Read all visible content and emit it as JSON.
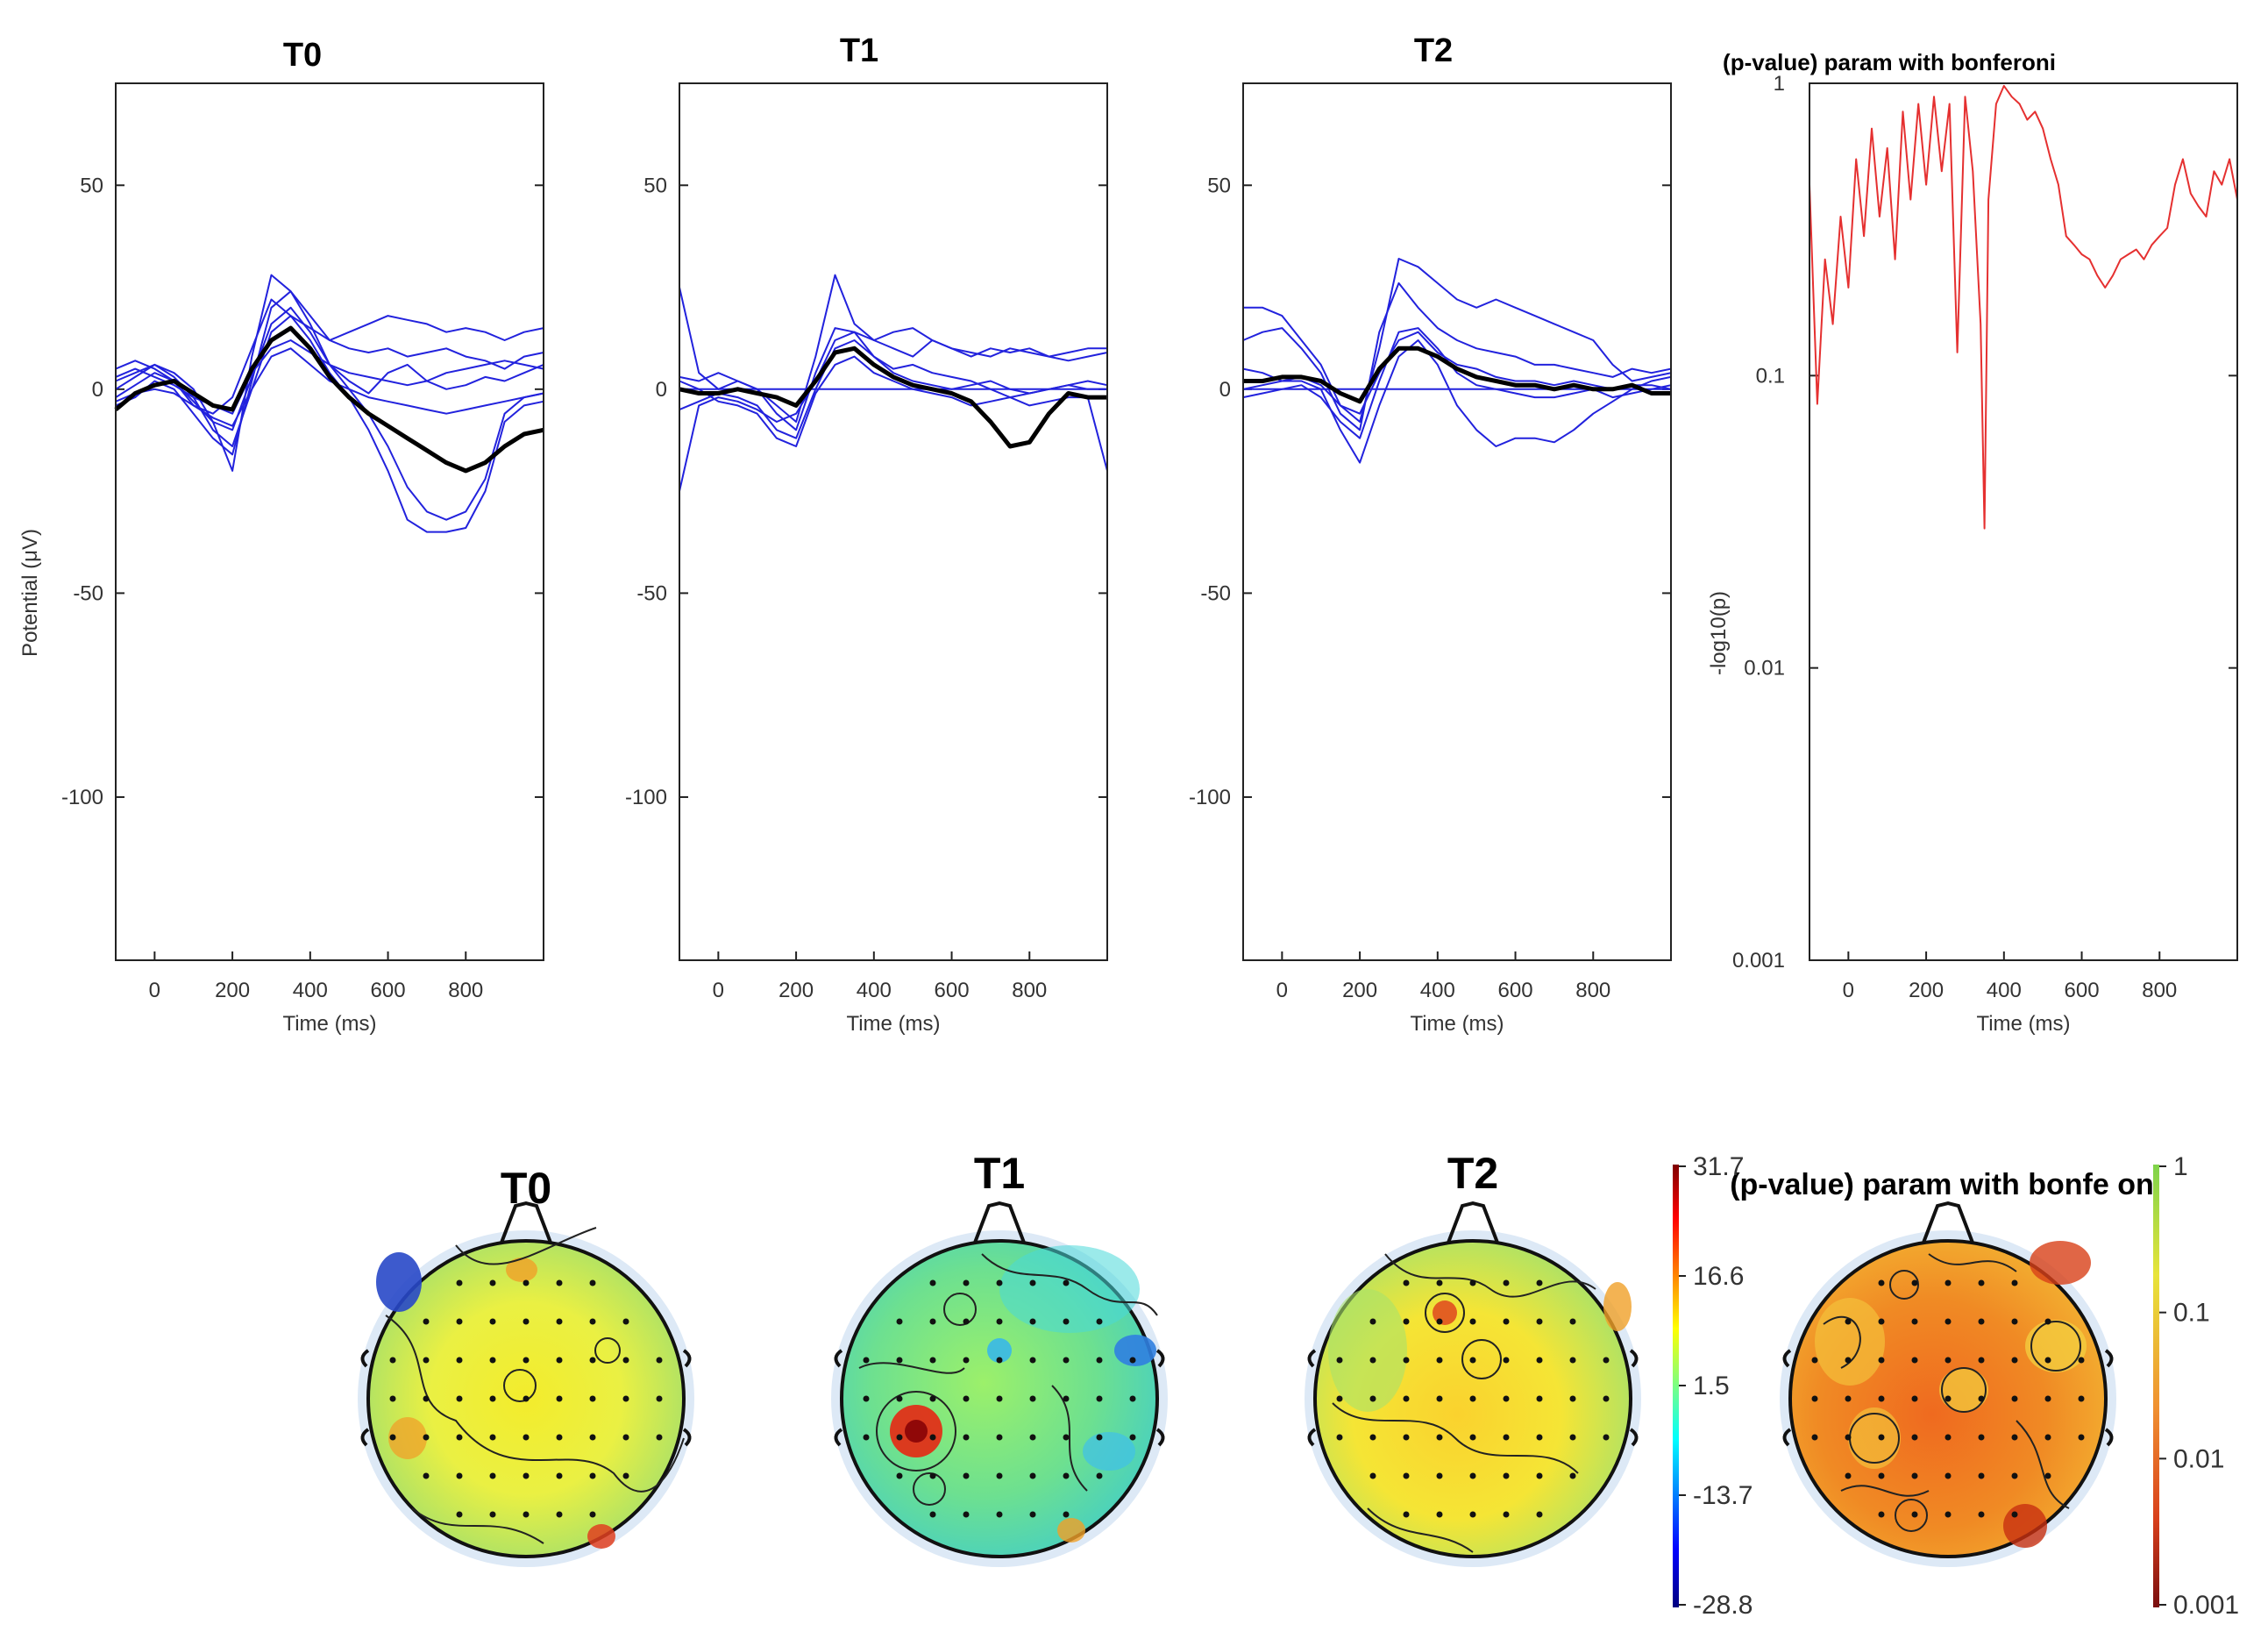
{
  "chart_data": [
    {
      "type": "line",
      "title": "T0",
      "xlabel": "Time (ms)",
      "ylabel": "Potential (μV)",
      "xlim": [
        -100,
        1000
      ],
      "ylim": [
        -140,
        75
      ],
      "xticks": [
        0,
        200,
        400,
        600,
        800
      ],
      "yticks": [
        50,
        0,
        -50,
        -100
      ],
      "mean_color": "#000000",
      "channel_color": "#2222dd",
      "x": [
        -100,
        -50,
        0,
        50,
        100,
        150,
        200,
        250,
        300,
        350,
        400,
        450,
        500,
        550,
        600,
        650,
        700,
        750,
        800,
        850,
        900,
        950,
        1000
      ],
      "series": [
        {
          "name": "mean",
          "values": [
            -5,
            -1,
            1,
            2,
            -1,
            -4,
            -5,
            5,
            12,
            15,
            10,
            3,
            -2,
            -6,
            -9,
            -12,
            -15,
            -18,
            -20,
            -18,
            -14,
            -11,
            -10
          ]
        },
        {
          "name": "ch1",
          "values": [
            0,
            3,
            6,
            4,
            0,
            -8,
            -20,
            8,
            28,
            24,
            18,
            12,
            14,
            16,
            18,
            17,
            16,
            14,
            15,
            14,
            12,
            14,
            15
          ]
        },
        {
          "name": "ch2",
          "values": [
            5,
            7,
            5,
            2,
            -4,
            -6,
            -2,
            10,
            22,
            18,
            15,
            12,
            10,
            9,
            10,
            8,
            9,
            10,
            8,
            7,
            5,
            8,
            9
          ]
        },
        {
          "name": "ch3",
          "values": [
            -4,
            -2,
            2,
            0,
            -6,
            -12,
            -16,
            2,
            20,
            24,
            16,
            6,
            2,
            -1,
            4,
            6,
            2,
            0,
            1,
            3,
            2,
            4,
            6
          ]
        },
        {
          "name": "ch4",
          "values": [
            2,
            4,
            6,
            3,
            -2,
            -10,
            -14,
            0,
            14,
            18,
            12,
            4,
            -2,
            -10,
            -20,
            -32,
            -35,
            -35,
            -34,
            -25,
            -8,
            -4,
            -3
          ]
        },
        {
          "name": "ch5",
          "values": [
            -2,
            1,
            4,
            2,
            -3,
            -8,
            -10,
            3,
            16,
            20,
            14,
            6,
            0,
            -6,
            -14,
            -24,
            -30,
            -32,
            -30,
            -22,
            -6,
            -2,
            -1
          ]
        },
        {
          "name": "ch6",
          "values": [
            3,
            5,
            3,
            1,
            -2,
            -4,
            -6,
            4,
            10,
            12,
            9,
            6,
            4,
            3,
            2,
            1,
            2,
            4,
            5,
            6,
            7,
            6,
            5
          ]
        },
        {
          "name": "ch7",
          "values": [
            -3,
            -1,
            0,
            -1,
            -4,
            -7,
            -9,
            0,
            8,
            10,
            6,
            2,
            0,
            -2,
            -3,
            -4,
            -5,
            -6,
            -5,
            -4,
            -3,
            -2,
            -1
          ]
        }
      ]
    },
    {
      "type": "line",
      "title": "T1",
      "xlabel": "Time (ms)",
      "ylabel": "",
      "xlim": [
        -100,
        1000
      ],
      "ylim": [
        -140,
        75
      ],
      "xticks": [
        0,
        200,
        400,
        600,
        800
      ],
      "yticks": [
        50,
        0,
        -50,
        -100
      ],
      "mean_color": "#000000",
      "channel_color": "#2222dd",
      "x": [
        -100,
        -50,
        0,
        50,
        100,
        150,
        200,
        250,
        300,
        350,
        400,
        450,
        500,
        550,
        600,
        650,
        700,
        750,
        800,
        850,
        900,
        950,
        1000
      ],
      "series": [
        {
          "name": "mean",
          "values": [
            0,
            -1,
            -1,
            0,
            -1,
            -2,
            -4,
            2,
            9,
            10,
            6,
            3,
            1,
            0,
            -1,
            -3,
            -8,
            -14,
            -13,
            -6,
            -1,
            -2,
            -2
          ]
        },
        {
          "name": "ch1",
          "values": [
            25,
            4,
            0,
            2,
            0,
            -4,
            -8,
            8,
            28,
            16,
            12,
            10,
            8,
            12,
            10,
            9,
            8,
            10,
            9,
            8,
            7,
            8,
            9
          ]
        },
        {
          "name": "ch2",
          "values": [
            3,
            2,
            4,
            2,
            0,
            -6,
            -10,
            4,
            15,
            14,
            12,
            14,
            15,
            12,
            10,
            8,
            10,
            9,
            10,
            8,
            9,
            10,
            10
          ]
        },
        {
          "name": "ch3",
          "values": [
            -5,
            -3,
            -1,
            -2,
            -4,
            -10,
            -12,
            0,
            10,
            12,
            8,
            4,
            2,
            1,
            0,
            1,
            2,
            0,
            -1,
            0,
            1,
            2,
            1
          ]
        },
        {
          "name": "ch4",
          "values": [
            -25,
            -4,
            -2,
            -3,
            -5,
            -8,
            -6,
            2,
            12,
            14,
            8,
            5,
            6,
            4,
            3,
            2,
            0,
            -2,
            -4,
            -3,
            -2,
            -2,
            -20
          ]
        },
        {
          "name": "ch5",
          "values": [
            2,
            0,
            -3,
            -4,
            -6,
            -12,
            -14,
            -1,
            6,
            8,
            4,
            2,
            0,
            -1,
            -2,
            -4,
            -3,
            -2,
            -1,
            0,
            1,
            0,
            0
          ]
        },
        {
          "name": "ch6",
          "values": [
            0,
            0,
            0,
            0,
            0,
            0,
            0,
            0,
            0,
            0,
            0,
            0,
            0,
            0,
            0,
            0,
            0,
            0,
            0,
            0,
            0,
            0,
            0
          ]
        }
      ]
    },
    {
      "type": "line",
      "title": "T2",
      "xlabel": "Time (ms)",
      "ylabel": "",
      "xlim": [
        -100,
        1000
      ],
      "ylim": [
        -140,
        75
      ],
      "xticks": [
        0,
        200,
        400,
        600,
        800
      ],
      "yticks": [
        50,
        0,
        -50,
        -100
      ],
      "mean_color": "#000000",
      "channel_color": "#2222dd",
      "x": [
        -100,
        -50,
        0,
        50,
        100,
        150,
        200,
        250,
        300,
        350,
        400,
        450,
        500,
        550,
        600,
        650,
        700,
        750,
        800,
        850,
        900,
        950,
        1000
      ],
      "series": [
        {
          "name": "mean",
          "values": [
            2,
            2,
            3,
            3,
            2,
            -1,
            -3,
            5,
            10,
            10,
            8,
            5,
            3,
            2,
            1,
            1,
            0,
            1,
            0,
            0,
            1,
            -1,
            -1
          ]
        },
        {
          "name": "ch1",
          "values": [
            20,
            20,
            18,
            12,
            6,
            -4,
            -8,
            10,
            32,
            30,
            26,
            22,
            20,
            22,
            20,
            18,
            16,
            14,
            12,
            6,
            2,
            3,
            4
          ]
        },
        {
          "name": "ch2",
          "values": [
            12,
            14,
            15,
            10,
            4,
            -6,
            -10,
            14,
            26,
            20,
            15,
            12,
            10,
            9,
            8,
            6,
            6,
            5,
            4,
            3,
            5,
            4,
            5
          ]
        },
        {
          "name": "ch3",
          "values": [
            5,
            4,
            2,
            2,
            0,
            -10,
            -18,
            -4,
            8,
            12,
            6,
            -4,
            -10,
            -14,
            -12,
            -12,
            -13,
            -10,
            -6,
            -3,
            0,
            2,
            3
          ]
        },
        {
          "name": "ch4",
          "values": [
            -2,
            -1,
            0,
            1,
            -2,
            -8,
            -12,
            2,
            14,
            15,
            10,
            4,
            1,
            0,
            -1,
            -2,
            -2,
            -1,
            0,
            -2,
            -1,
            0,
            1
          ]
        },
        {
          "name": "ch5",
          "values": [
            0,
            1,
            2,
            3,
            1,
            -4,
            -6,
            4,
            12,
            14,
            9,
            6,
            5,
            3,
            2,
            2,
            1,
            2,
            1,
            0,
            1,
            1,
            0
          ]
        },
        {
          "name": "ch6",
          "values": [
            0,
            0,
            0,
            0,
            0,
            0,
            0,
            0,
            0,
            0,
            0,
            0,
            0,
            0,
            0,
            0,
            0,
            0,
            0,
            0,
            0,
            0,
            0
          ]
        }
      ]
    },
    {
      "type": "line",
      "title": "(p-value) param with bonferoni",
      "xlabel": "Time (ms)",
      "ylabel": "-log10(p)",
      "yscale": "log",
      "xlim": [
        -100,
        1000
      ],
      "ylim": [
        0.001,
        1
      ],
      "xticks": [
        0,
        200,
        400,
        600,
        800
      ],
      "ytick_values": [
        1,
        0.1,
        0.01,
        0.001
      ],
      "ytick_labels": [
        "1",
        "0.1",
        "0.01",
        "0.001"
      ],
      "color": "#e53030",
      "x": [
        -100,
        -80,
        -60,
        -40,
        -20,
        0,
        20,
        40,
        60,
        80,
        100,
        120,
        140,
        160,
        180,
        200,
        220,
        240,
        260,
        280,
        300,
        320,
        340,
        350,
        360,
        380,
        400,
        420,
        440,
        460,
        480,
        500,
        520,
        540,
        560,
        580,
        600,
        620,
        640,
        660,
        680,
        700,
        720,
        740,
        760,
        780,
        800,
        820,
        840,
        860,
        880,
        900,
        920,
        940,
        960,
        980,
        1000
      ],
      "values": [
        0.45,
        0.08,
        0.25,
        0.15,
        0.35,
        0.2,
        0.55,
        0.3,
        0.7,
        0.35,
        0.6,
        0.25,
        0.8,
        0.4,
        0.85,
        0.45,
        0.9,
        0.5,
        0.85,
        0.12,
        0.9,
        0.5,
        0.15,
        0.03,
        0.4,
        0.85,
        0.98,
        0.9,
        0.85,
        0.75,
        0.8,
        0.7,
        0.55,
        0.45,
        0.3,
        0.28,
        0.26,
        0.25,
        0.22,
        0.2,
        0.22,
        0.25,
        0.26,
        0.27,
        0.25,
        0.28,
        0.3,
        0.32,
        0.45,
        0.55,
        0.42,
        0.38,
        0.35,
        0.5,
        0.45,
        0.55,
        0.4
      ]
    }
  ],
  "topomaps": [
    {
      "title": "T0"
    },
    {
      "title": "T1"
    },
    {
      "title": "T2"
    },
    {
      "title": "(p-value) param with bonfe on"
    }
  ],
  "colorbars": [
    {
      "ticks": [
        "31.7",
        "16.6",
        "1.5",
        "-13.7",
        "-28.8"
      ]
    },
    {
      "ticks": [
        "1",
        "0.1",
        "0.01",
        "0.001"
      ]
    }
  ]
}
